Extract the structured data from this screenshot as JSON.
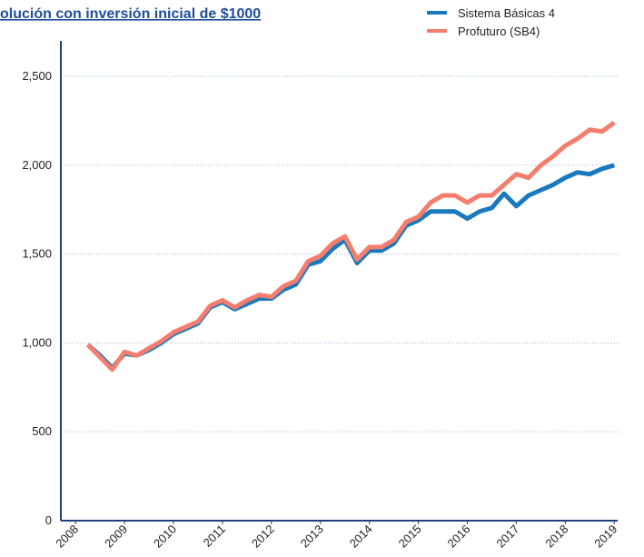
{
  "chart_data": {
    "type": "line",
    "title": "olución con inversión inicial de $1000",
    "x": [
      2008.25,
      2008.5,
      2008.75,
      2009.0,
      2009.25,
      2009.5,
      2009.75,
      2010.0,
      2010.25,
      2010.5,
      2010.75,
      2011.0,
      2011.25,
      2011.5,
      2011.75,
      2012.0,
      2012.25,
      2012.5,
      2012.75,
      2013.0,
      2013.25,
      2013.5,
      2013.75,
      2014.0,
      2014.25,
      2014.5,
      2014.75,
      2015.0,
      2015.25,
      2015.5,
      2015.75,
      2016.0,
      2016.25,
      2016.5,
      2016.75,
      2017.0,
      2017.25,
      2017.5,
      2017.75,
      2018.0,
      2018.25,
      2018.5,
      2018.75,
      2019.0
    ],
    "series": [
      {
        "name": "Sistema Básicas 4",
        "color": "#1a79bd",
        "values": [
          990,
          930,
          860,
          940,
          930,
          960,
          1000,
          1050,
          1080,
          1110,
          1200,
          1230,
          1190,
          1220,
          1250,
          1250,
          1300,
          1330,
          1440,
          1460,
          1530,
          1580,
          1450,
          1520,
          1520,
          1560,
          1660,
          1690,
          1740,
          1740,
          1740,
          1700,
          1740,
          1760,
          1840,
          1770,
          1830,
          1860,
          1890,
          1930,
          1960,
          1950,
          1980,
          2000
        ]
      },
      {
        "name": "Profuturo (SB4)",
        "color": "#f47d6d",
        "values": [
          990,
          920,
          850,
          950,
          930,
          970,
          1010,
          1060,
          1090,
          1120,
          1210,
          1240,
          1200,
          1240,
          1270,
          1260,
          1320,
          1350,
          1460,
          1490,
          1560,
          1600,
          1470,
          1540,
          1540,
          1580,
          1680,
          1710,
          1790,
          1830,
          1830,
          1790,
          1830,
          1830,
          1890,
          1950,
          1930,
          2000,
          2050,
          2110,
          2150,
          2200,
          2190,
          2240
        ]
      }
    ],
    "xlim": [
      2007.7,
      2019.07
    ],
    "xticks": [
      2008,
      2009,
      2010,
      2011,
      2012,
      2013,
      2014,
      2015,
      2016,
      2017,
      2018,
      2019
    ],
    "ylim": [
      0,
      2700
    ],
    "yticks": [
      0,
      500,
      {
        "value": 1000,
        "label": "1,000"
      },
      {
        "value": 1500,
        "label": "1,500"
      },
      {
        "value": 2000,
        "label": "2,000"
      },
      {
        "value": 2500,
        "label": "2,500"
      }
    ],
    "grid": true,
    "legend": "top-right"
  }
}
